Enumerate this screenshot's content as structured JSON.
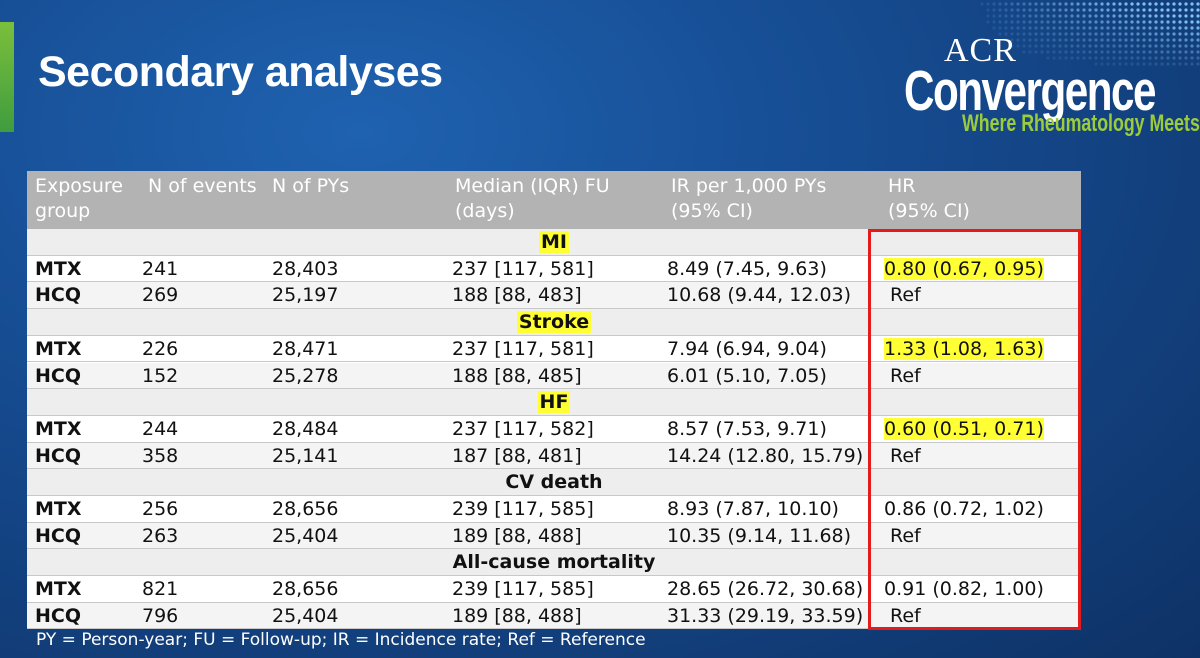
{
  "slide": {
    "title": "Secondary analyses",
    "footnote": "PY = Person-year; FU = Follow-up; IR = Incidence rate; Ref = Reference"
  },
  "logo": {
    "top": "ACR",
    "main": "Convergence",
    "tagline": "Where Rheumatology Meets"
  },
  "colors": {
    "background": "#174f96",
    "header_fill": "#b3b3b3",
    "highlight": "#ffff33",
    "box_border": "#e31b1b",
    "accent_green": "#7bbf3c"
  },
  "table": {
    "headers": {
      "exposure_line1": "Exposure",
      "exposure_line2": "group",
      "events": "N of events",
      "pys": "N of PYs",
      "fu_line1": "Median (IQR) FU",
      "fu_line2": "(days)",
      "ir_line1": "IR per 1,000 PYs",
      "ir_line2": "(95% CI)",
      "hr_line1": "HR",
      "hr_line2": "(95% CI)"
    },
    "sections": [
      {
        "label": "MI",
        "label_highlight": true,
        "rows": [
          {
            "group": "MTX",
            "events": "241",
            "pys": "28,403",
            "fu": "237 [117, 581]",
            "ir": "8.49 (7.45, 9.63)",
            "hr": "0.80 (0.67, 0.95)",
            "hr_highlight": true
          },
          {
            "group": "HCQ",
            "events": "269",
            "pys": "25,197",
            "fu": "188 [88, 483]",
            "ir": "10.68 (9.44, 12.03)",
            "hr": "Ref",
            "hr_highlight": false
          }
        ]
      },
      {
        "label": "Stroke",
        "label_highlight": true,
        "rows": [
          {
            "group": "MTX",
            "events": "226",
            "pys": "28,471",
            "fu": "237 [117, 581]",
            "ir": "7.94 (6.94, 9.04)",
            "hr": "1.33 (1.08, 1.63)",
            "hr_highlight": true
          },
          {
            "group": "HCQ",
            "events": "152",
            "pys": "25,278",
            "fu": "188 [88, 485]",
            "ir": "6.01 (5.10, 7.05)",
            "hr": "Ref",
            "hr_highlight": false
          }
        ]
      },
      {
        "label": "HF",
        "label_highlight": true,
        "rows": [
          {
            "group": "MTX",
            "events": "244",
            "pys": "28,484",
            "fu": "237 [117, 582]",
            "ir": "8.57 (7.53, 9.71)",
            "hr": "0.60 (0.51, 0.71)",
            "hr_highlight": true
          },
          {
            "group": "HCQ",
            "events": "358",
            "pys": "25,141",
            "fu": "187 [88, 481]",
            "ir": "14.24 (12.80, 15.79)",
            "hr": "Ref",
            "hr_highlight": false
          }
        ]
      },
      {
        "label": "CV death",
        "label_highlight": false,
        "rows": [
          {
            "group": "MTX",
            "events": "256",
            "pys": "28,656",
            "fu": "239 [117, 585]",
            "ir": "8.93 (7.87, 10.10)",
            "hr": "0.86 (0.72, 1.02)",
            "hr_highlight": false
          },
          {
            "group": "HCQ",
            "events": "263",
            "pys": "25,404",
            "fu": "189 [88, 488]",
            "ir": "10.35 (9.14, 11.68)",
            "hr": "Ref",
            "hr_highlight": false
          }
        ]
      },
      {
        "label": "All-cause mortality",
        "label_highlight": false,
        "rows": [
          {
            "group": "MTX",
            "events": "821",
            "pys": "28,656",
            "fu": "239 [117, 585]",
            "ir": "28.65 (26.72, 30.68)",
            "hr": "0.91 (0.82, 1.00)",
            "hr_highlight": false
          },
          {
            "group": "HCQ",
            "events": "796",
            "pys": "25,404",
            "fu": "189 [88, 488]",
            "ir": "31.33 (29.19, 33.59)",
            "hr": "Ref",
            "hr_highlight": false
          }
        ]
      }
    ]
  }
}
